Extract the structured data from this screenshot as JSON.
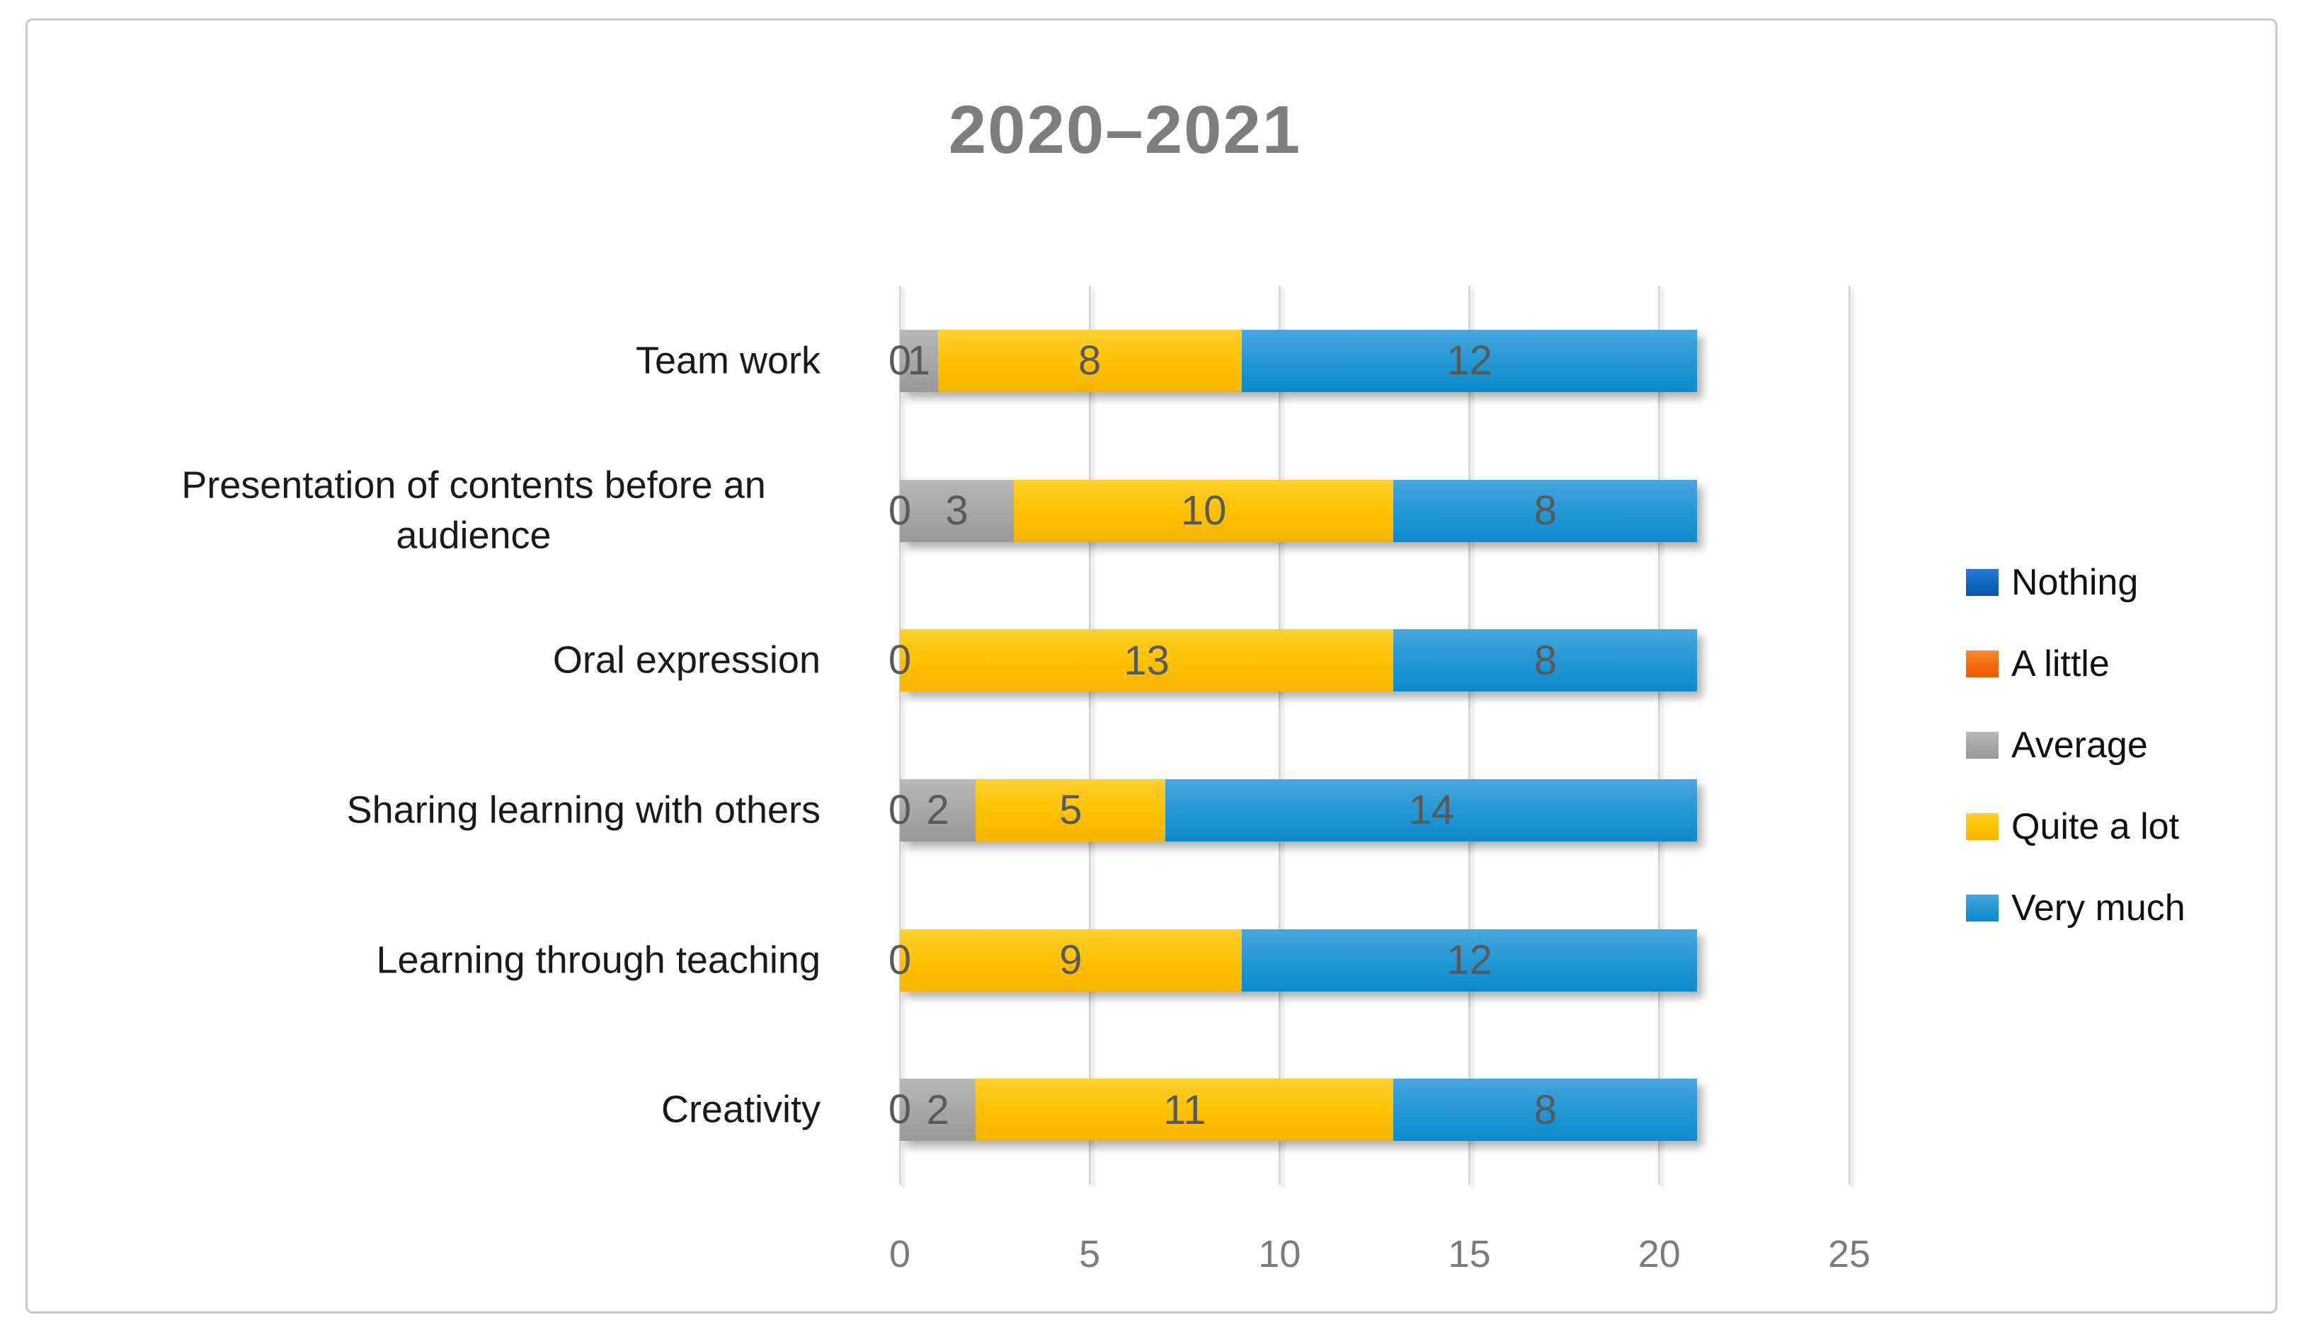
{
  "title": "2020–2021",
  "chart_data": {
    "type": "bar",
    "orientation": "horizontal",
    "stacked": true,
    "title": "2020–2021",
    "categories": [
      "Team work",
      "Presentation of contents before an audience",
      "Oral expression",
      "Sharing learning with others",
      "Learning through teaching",
      "Creativity"
    ],
    "series": [
      {
        "name": "Nothing",
        "color": "#1266be",
        "gradient": [
          "#2979d0",
          "#0b56ac"
        ],
        "values": [
          0,
          0,
          0,
          0,
          0,
          0
        ]
      },
      {
        "name": "A little",
        "color": "#f4690e",
        "gradient": [
          "#fb8b33",
          "#ef5c04"
        ],
        "values": [
          0,
          0,
          0,
          0,
          0,
          0
        ]
      },
      {
        "name": "Average",
        "color": "#a6a6a6",
        "gradient": [
          "#b8b8b8",
          "#999999"
        ],
        "values": [
          1,
          3,
          0,
          2,
          0,
          2
        ]
      },
      {
        "name": "Quite a lot",
        "color": "#ffc000",
        "gradient": [
          "#ffd02f",
          "#f5b400"
        ],
        "values": [
          8,
          10,
          13,
          5,
          9,
          11
        ]
      },
      {
        "name": "Very much",
        "color": "#2196d3",
        "gradient": [
          "#49a7df",
          "#0c8ccd"
        ],
        "values": [
          12,
          8,
          8,
          14,
          12,
          8
        ]
      }
    ],
    "x_ticks": [
      0,
      5,
      10,
      15,
      20,
      25
    ],
    "xlim": [
      0,
      25
    ],
    "grid": true,
    "legend_position": "right",
    "data_labels_shown": true
  },
  "styles": {
    "title_color": "#7d7d7d",
    "tick_label_color": "#7b7b7b",
    "data_label_color": "#595959",
    "category_label_color": "#1a1a1a",
    "gridline_color": "#d6d6d6",
    "frame_border_color": "#c9c9c9",
    "background": "#ffffff"
  }
}
